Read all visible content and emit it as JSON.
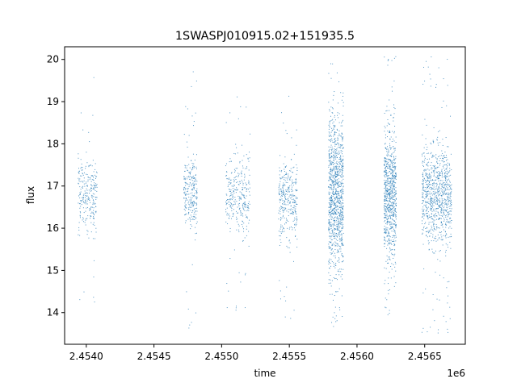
{
  "chart_data": {
    "type": "scatter",
    "title": "1SWASPJ010915.02+151935.5",
    "xlabel": "time",
    "ylabel": "flux",
    "x_offset_label": "1e6",
    "xlim": [
      2.45384,
      2.4568
    ],
    "ylim": [
      13.25,
      20.3
    ],
    "x_ticks": [
      2.454,
      2.4545,
      2.455,
      2.4555,
      2.456,
      2.4565
    ],
    "x_tick_labels": [
      "2.4540",
      "2.4545",
      "2.4550",
      "2.4555",
      "2.4560",
      "2.4565"
    ],
    "y_ticks": [
      14,
      15,
      16,
      17,
      18,
      19,
      20
    ],
    "y_tick_labels": [
      "14",
      "15",
      "16",
      "17",
      "18",
      "19",
      "20"
    ],
    "grid": false,
    "marker_color": "#1f77b4",
    "series": [
      {
        "clusters": [
          {
            "x_start": 2.45394,
            "x_end": 2.45408,
            "y_center": 16.8,
            "core_halfwidth": 0.75,
            "outlier_min": 13.8,
            "outlier_max": 19.6,
            "density": 1.0
          },
          {
            "x_start": 2.45472,
            "x_end": 2.45482,
            "y_center": 16.8,
            "core_halfwidth": 0.7,
            "outlier_min": 13.6,
            "outlier_max": 19.9,
            "density": 1.0
          },
          {
            "x_start": 2.45503,
            "x_end": 2.45521,
            "y_center": 16.8,
            "core_halfwidth": 0.8,
            "outlier_min": 13.8,
            "outlier_max": 19.3,
            "density": 1.2
          },
          {
            "x_start": 2.45542,
            "x_end": 2.45556,
            "y_center": 16.7,
            "core_halfwidth": 0.8,
            "outlier_min": 13.6,
            "outlier_max": 19.2,
            "density": 1.3
          },
          {
            "x_start": 2.45579,
            "x_end": 2.4559,
            "y_center": 16.8,
            "core_halfwidth": 1.6,
            "outlier_min": 13.55,
            "outlier_max": 20.1,
            "density": 4.0
          },
          {
            "x_start": 2.4562,
            "x_end": 2.45629,
            "y_center": 16.8,
            "core_halfwidth": 1.3,
            "outlier_min": 13.8,
            "outlier_max": 20.1,
            "density": 3.0
          },
          {
            "x_start": 2.45648,
            "x_end": 2.4567,
            "y_center": 16.8,
            "core_halfwidth": 1.0,
            "outlier_min": 13.5,
            "outlier_max": 20.1,
            "density": 3.5
          }
        ]
      }
    ]
  }
}
